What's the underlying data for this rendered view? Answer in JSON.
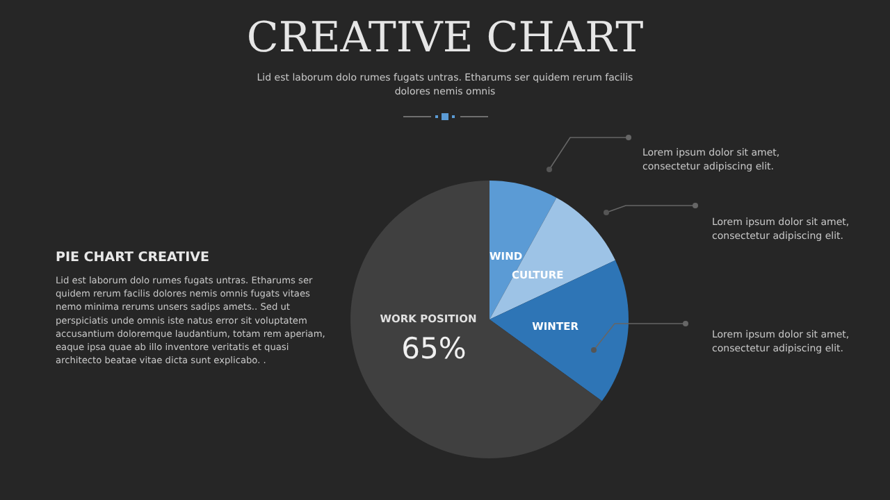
{
  "chart_data": {
    "type": "pie",
    "title": "CREATIVE CHART",
    "subtitle": "Lid est laborum dolo rumes fugats untras. Etharums ser quidem rerum facilis dolores nemis omnis",
    "categories": [
      "WIND",
      "CULTURE",
      "WINTER",
      "WORK POSITION"
    ],
    "values": [
      8,
      10,
      17,
      65
    ],
    "colors": [
      "#5b9bd5",
      "#9dc3e6",
      "#2e75b6",
      "#404040"
    ],
    "value_labels": [
      null,
      null,
      null,
      "65%"
    ],
    "annotations": [
      "PIE CHART CREATIVE",
      "Lid est laborum dolo rumes fugats untras. Etharums ser quidem rerum facilis dolores nemis omnis fugats vitaes nemo minima rerums unsers sadips amets.. Sed ut perspiciatis unde omnis iste natus error sit voluptatem accusantium doloremque laudantium, totam rem aperiam, eaque ipsa quae ab illo inventore veritatis et quasi architecto beatae vitae dicta sunt explicabo. .",
      "Lorem ipsum dolor sit amet, consectetur adipiscing elit.",
      "Lorem ipsum dolor sit amet, consectetur adipiscing elit.",
      "Lorem ipsum dolor sit amet, consectetur adipiscing elit."
    ]
  }
}
